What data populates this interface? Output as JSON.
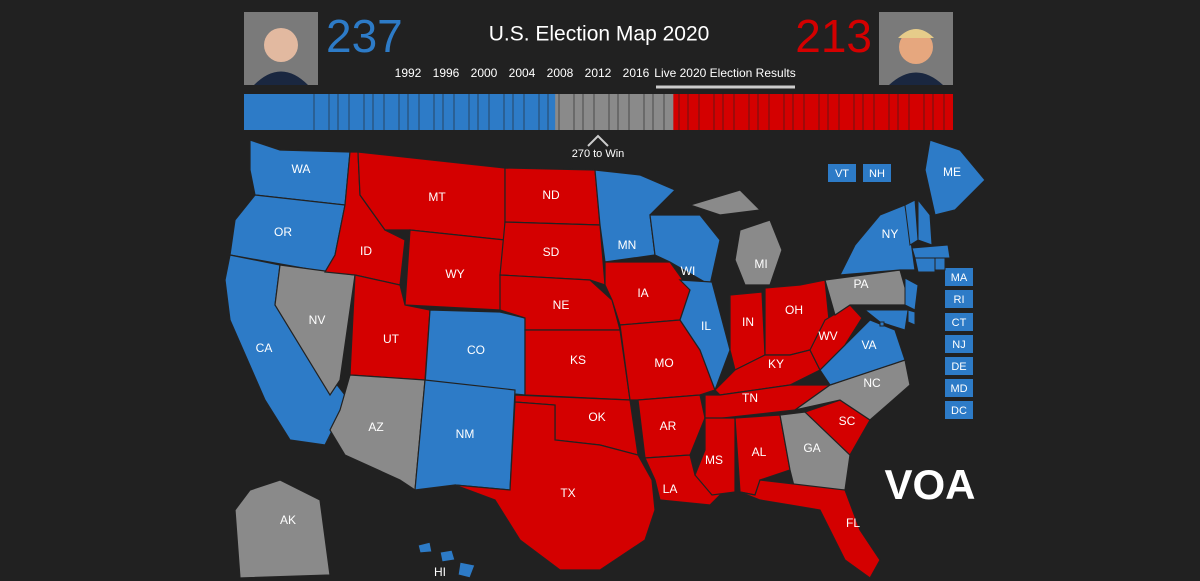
{
  "header": {
    "title": "U.S. Election Map 2020",
    "dem_votes": 237,
    "rep_votes": 213,
    "years": [
      "1992",
      "1996",
      "2000",
      "2004",
      "2008",
      "2012",
      "2016"
    ],
    "live": "Live 2020 Election Results",
    "win_label": "270 to Win",
    "win_value": 270
  },
  "colors": {
    "dem": "#2d7bc7",
    "rep": "#d40000",
    "tossup": "#8a8a8a"
  },
  "states": [
    {
      "label": "WA",
      "winner": "dem"
    },
    {
      "label": "OR",
      "winner": "dem"
    },
    {
      "label": "CA",
      "winner": "dem"
    },
    {
      "label": "NV",
      "winner": "tossup"
    },
    {
      "label": "ID",
      "winner": "rep"
    },
    {
      "label": "MT",
      "winner": "rep"
    },
    {
      "label": "WY",
      "winner": "rep"
    },
    {
      "label": "UT",
      "winner": "rep"
    },
    {
      "label": "CO",
      "winner": "dem"
    },
    {
      "label": "AZ",
      "winner": "tossup"
    },
    {
      "label": "NM",
      "winner": "dem"
    },
    {
      "label": "ND",
      "winner": "rep"
    },
    {
      "label": "SD",
      "winner": "rep"
    },
    {
      "label": "NE",
      "winner": "rep"
    },
    {
      "label": "KS",
      "winner": "rep"
    },
    {
      "label": "OK",
      "winner": "rep"
    },
    {
      "label": "TX",
      "winner": "rep"
    },
    {
      "label": "MN",
      "winner": "dem"
    },
    {
      "label": "IA",
      "winner": "rep"
    },
    {
      "label": "MO",
      "winner": "rep"
    },
    {
      "label": "AR",
      "winner": "rep"
    },
    {
      "label": "LA",
      "winner": "rep"
    },
    {
      "label": "WI",
      "winner": "dem"
    },
    {
      "label": "IL",
      "winner": "dem"
    },
    {
      "label": "MI",
      "winner": "tossup"
    },
    {
      "label": "IN",
      "winner": "rep"
    },
    {
      "label": "OH",
      "winner": "rep"
    },
    {
      "label": "KY",
      "winner": "rep"
    },
    {
      "label": "TN",
      "winner": "rep"
    },
    {
      "label": "MS",
      "winner": "rep"
    },
    {
      "label": "AL",
      "winner": "rep"
    },
    {
      "label": "GA",
      "winner": "tossup"
    },
    {
      "label": "FL",
      "winner": "rep"
    },
    {
      "label": "SC",
      "winner": "rep"
    },
    {
      "label": "NC",
      "winner": "tossup"
    },
    {
      "label": "VA",
      "winner": "dem"
    },
    {
      "label": "WV",
      "winner": "rep"
    },
    {
      "label": "PA",
      "winner": "tossup"
    },
    {
      "label": "NY",
      "winner": "dem"
    },
    {
      "label": "ME",
      "winner": "dem"
    },
    {
      "label": "AK",
      "winner": "tossup"
    },
    {
      "label": "HI",
      "winner": "dem"
    }
  ],
  "small_states": [
    {
      "label": "VT",
      "winner": "dem"
    },
    {
      "label": "NH",
      "winner": "dem"
    },
    {
      "label": "MA",
      "winner": "dem"
    },
    {
      "label": "RI",
      "winner": "dem"
    },
    {
      "label": "CT",
      "winner": "dem"
    },
    {
      "label": "NJ",
      "winner": "dem"
    },
    {
      "label": "DE",
      "winner": "dem"
    },
    {
      "label": "MD",
      "winner": "dem"
    },
    {
      "label": "DC",
      "winner": "dem"
    }
  ],
  "logo": "VOA"
}
